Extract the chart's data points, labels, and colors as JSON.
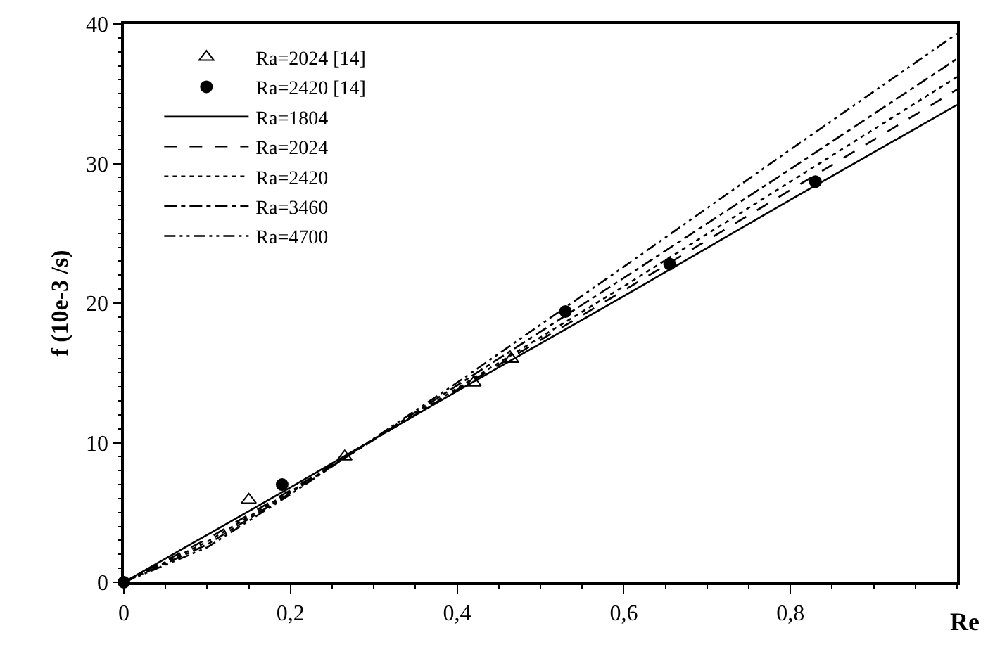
{
  "chart_data": {
    "type": "line",
    "xlabel": "Re",
    "ylabel": "f (10e-3 /s)",
    "xlim": [
      0,
      1.0
    ],
    "ylim": [
      0,
      40
    ],
    "xticks": [
      0,
      {
        "value": 0.2,
        "label": "0,2"
      },
      {
        "value": 0.4,
        "label": "0,4"
      },
      {
        "value": 0.6,
        "label": "0,6"
      },
      {
        "value": 0.8,
        "label": "0,8"
      }
    ],
    "yticks": [
      0,
      10,
      20,
      30,
      40
    ],
    "legend": "top left",
    "series": [
      {
        "name": "Ra=2024 [14]",
        "type": "scatter",
        "marker": "triangle",
        "color": "#000000",
        "x": [
          0.15,
          0.265,
          0.42,
          0.465
        ],
        "values": [
          5.9,
          9.0,
          14.3,
          16.0
        ]
      },
      {
        "name": "Ra=2420 [14]",
        "type": "scatter",
        "marker": "circle",
        "color": "#000000",
        "x": [
          0,
          0.19,
          0.53,
          0.655,
          0.83
        ],
        "values": [
          0,
          7.0,
          19.4,
          22.8,
          28.7
        ]
      },
      {
        "name": "Ra=1804",
        "line_style": "solid",
        "color": "#000000",
        "x": [
          0,
          0.1,
          0.2,
          0.4,
          0.6,
          0.8,
          1.0
        ],
        "values": [
          0,
          3.4,
          6.8,
          13.7,
          20.5,
          27.4,
          34.2
        ]
      },
      {
        "name": "Ra=2024",
        "line_style": "dashed",
        "color": "#000000",
        "x": [
          0,
          0.1,
          0.2,
          0.4,
          0.6,
          0.8,
          1.0
        ],
        "values": [
          0,
          3.1,
          6.6,
          13.8,
          20.9,
          28.1,
          35.3
        ]
      },
      {
        "name": "Ra=2420",
        "line_style": "dotted",
        "color": "#000000",
        "x": [
          0,
          0.1,
          0.2,
          0.4,
          0.6,
          0.8,
          1.0
        ],
        "values": [
          0,
          2.9,
          6.5,
          13.9,
          21.2,
          28.7,
          36.2
        ]
      },
      {
        "name": "Ra=3460",
        "line_style": "dashdot",
        "color": "#000000",
        "x": [
          0,
          0.1,
          0.2,
          0.4,
          0.6,
          0.8,
          1.0
        ],
        "values": [
          0,
          2.7,
          6.4,
          14.1,
          21.8,
          29.6,
          37.5
        ]
      },
      {
        "name": "Ra=4700",
        "line_style": "dashdotdot",
        "color": "#000000",
        "x": [
          0,
          0.1,
          0.2,
          0.4,
          0.6,
          0.8,
          1.0
        ],
        "values": [
          0,
          2.5,
          6.3,
          14.3,
          22.6,
          31.0,
          39.3
        ]
      }
    ]
  }
}
